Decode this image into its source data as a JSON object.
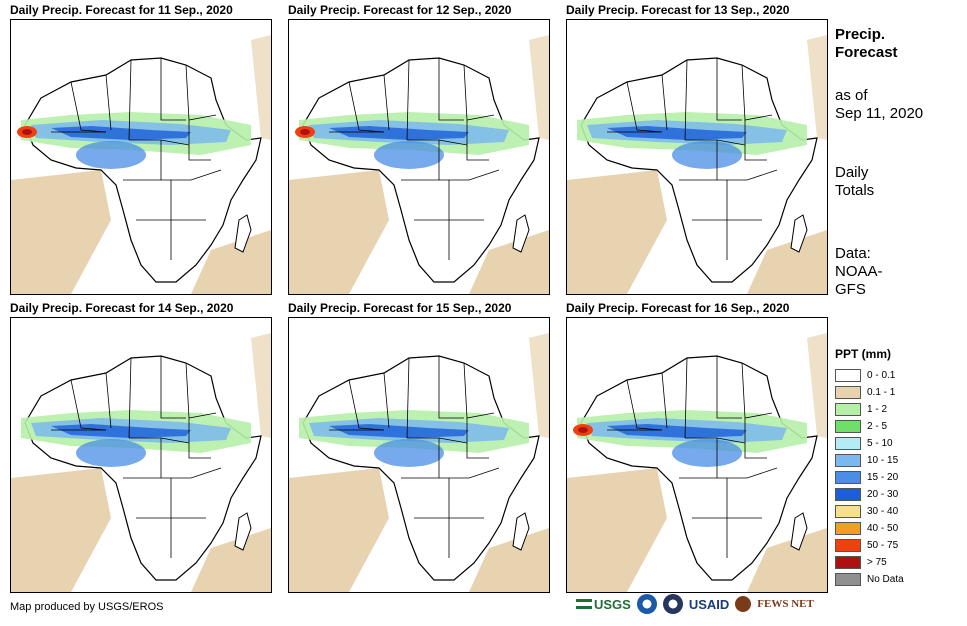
{
  "panels": [
    {
      "title": "Daily Precip. Forecast for 11 Sep., 2020"
    },
    {
      "title": "Daily Precip. Forecast for 12 Sep., 2020"
    },
    {
      "title": "Daily Precip. Forecast for 13 Sep., 2020"
    },
    {
      "title": "Daily Precip. Forecast for 14 Sep., 2020"
    },
    {
      "title": "Daily Precip. Forecast for 15 Sep., 2020"
    },
    {
      "title": "Daily Precip. Forecast for 16 Sep., 2020"
    }
  ],
  "sidebar": {
    "heading_line1": "Precip.",
    "heading_line2": "Forecast",
    "asof_line1": "as of",
    "asof_line2": "Sep 11, 2020",
    "totals_line1": "Daily",
    "totals_line2": "Totals",
    "data_line1": "Data:",
    "data_line2": "NOAA-",
    "data_line3": "GFS"
  },
  "legend": {
    "title": "PPT (mm)",
    "items": [
      {
        "label": "0 - 0.1",
        "color": "#ffffff"
      },
      {
        "label": "0.1 - 1",
        "color": "#e8d3b0"
      },
      {
        "label": "1 - 2",
        "color": "#b6f0a8"
      },
      {
        "label": "2 - 5",
        "color": "#6ee06a"
      },
      {
        "label": "5 - 10",
        "color": "#b3ecf5"
      },
      {
        "label": "10 - 15",
        "color": "#7ab8ee"
      },
      {
        "label": "15 - 20",
        "color": "#4a8ee6"
      },
      {
        "label": "20 - 30",
        "color": "#1c5ed8"
      },
      {
        "label": "30 - 40",
        "color": "#f7e08a"
      },
      {
        "label": "40 - 50",
        "color": "#f0a020"
      },
      {
        "label": "50 - 75",
        "color": "#f04010"
      },
      {
        "label": "> 75",
        "color": "#b01010"
      },
      {
        "label": "No Data",
        "color": "#909090"
      }
    ]
  },
  "footer": {
    "credit": "Map produced by USGS/EROS",
    "logo_usgs": "USGS",
    "logo_usaid": "USAID",
    "logo_fews": "FEWS NET"
  }
}
